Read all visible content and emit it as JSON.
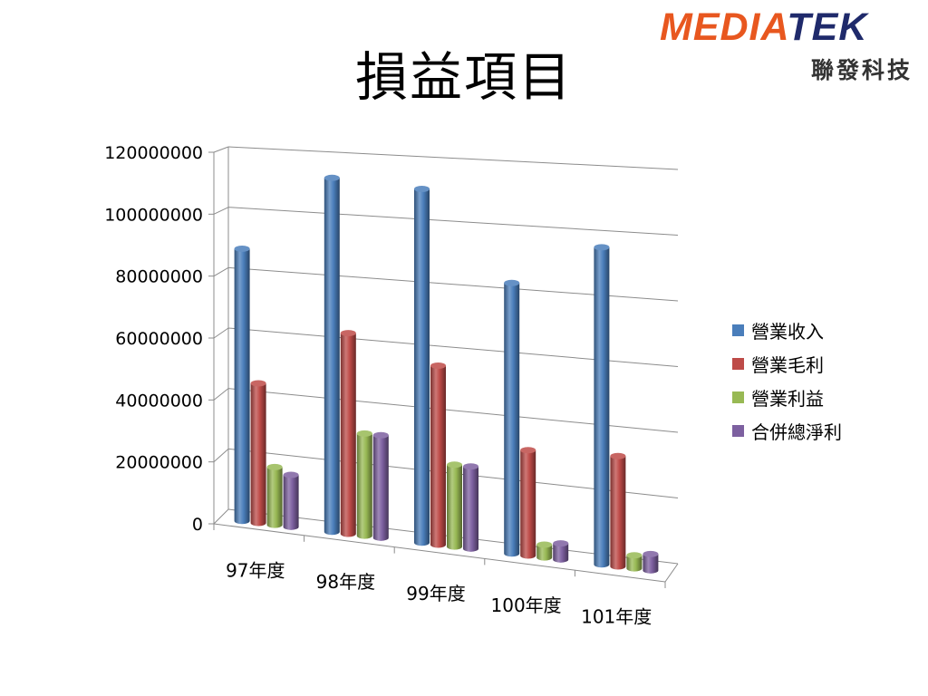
{
  "slide": {
    "title": "損益項目",
    "logo": {
      "brand_left": "MEDIA",
      "brand_right": "TEK",
      "chinese": "聯發科技"
    }
  },
  "chart_data": {
    "type": "bar",
    "style": "3d-cylinder",
    "categories": [
      "97年度",
      "98年度",
      "99年度",
      "100年度",
      "101年度"
    ],
    "series": [
      {
        "name": "營業收入",
        "color": "#4a7ebb",
        "values": [
          90000000,
          115000000,
          113000000,
          85000000,
          98000000
        ]
      },
      {
        "name": "營業毛利",
        "color": "#be4b48",
        "values": [
          46000000,
          65000000,
          57000000,
          33000000,
          34000000
        ]
      },
      {
        "name": "營業利益",
        "color": "#98b954",
        "values": [
          19000000,
          33000000,
          26000000,
          4000000,
          4000000
        ]
      },
      {
        "name": "合併總淨利",
        "color": "#7d60a0",
        "values": [
          17000000,
          33000000,
          26000000,
          5000000,
          5000000
        ]
      }
    ],
    "yticks": [
      "0",
      "20000000",
      "40000000",
      "60000000",
      "80000000",
      "100000000",
      "120000000"
    ],
    "ylim": [
      0,
      120000000
    ],
    "grid": true,
    "legend_position": "right"
  }
}
